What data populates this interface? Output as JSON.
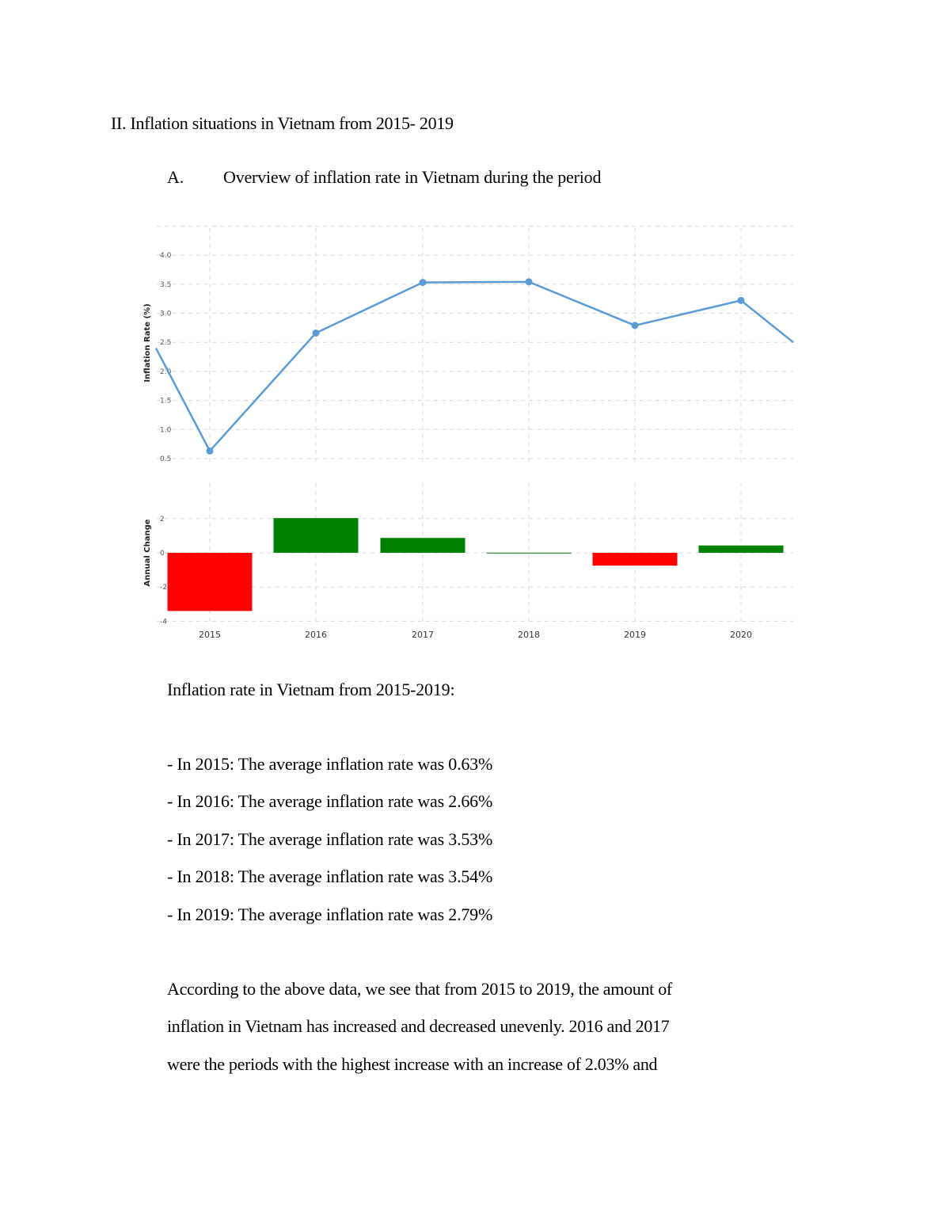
{
  "document": {
    "section_heading": "II. Inflation situations in Vietnam from 2015- 2019",
    "subsection_marker": "A.",
    "subsection_title": "Overview of inflation rate in Vietnam during the period",
    "list_intro": "Inflation rate in Vietnam from 2015-2019:",
    "list_items": [
      "- In 2015: The average inflation rate was 0.63%",
      "- In 2016: The average inflation rate was 2.66%",
      "- In 2017: The average inflation rate was 3.53%",
      "- In 2018: The average inflation rate was 3.54%",
      "- In 2019: The average inflation rate was 2.79%"
    ],
    "paragraph_lines": [
      "According to the above data, we see that from 2015 to 2019, the amount of",
      "inflation in Vietnam has increased and decreased unevenly. 2016 and 2017",
      "were the periods with the highest increase with an increase of 2.03% and"
    ]
  },
  "chart_data": [
    {
      "type": "line",
      "title": "",
      "xlabel": "",
      "ylabel": "Inflation Rate (%)",
      "categories": [
        "2015",
        "2016",
        "2017",
        "2018",
        "2019",
        "2020"
      ],
      "values": [
        0.63,
        2.66,
        3.53,
        3.54,
        2.79,
        3.22
      ],
      "left_edge_value": 2.4,
      "right_edge_value": 2.5,
      "y_ticks": [
        "4.0",
        "3.5",
        "3.0",
        "2.5",
        "2.0",
        "1.5",
        "1.0",
        "0.5"
      ],
      "ylim": [
        0.5,
        4.5
      ],
      "grid": true,
      "line_color": "#5b9bd5",
      "legend": null
    },
    {
      "type": "bar",
      "title": "",
      "xlabel": "",
      "ylabel": "Annual Change",
      "categories": [
        "2015",
        "2016",
        "2017",
        "2018",
        "2019",
        "2020"
      ],
      "values": [
        -3.4,
        2.03,
        0.87,
        0.01,
        -0.75,
        0.43
      ],
      "y_ticks": [
        "2",
        "0",
        "-2",
        "-4"
      ],
      "ylim": [
        -4,
        2
      ],
      "grid": true,
      "positive_color": "#008000",
      "negative_color": "#ff0000",
      "legend": null
    }
  ]
}
